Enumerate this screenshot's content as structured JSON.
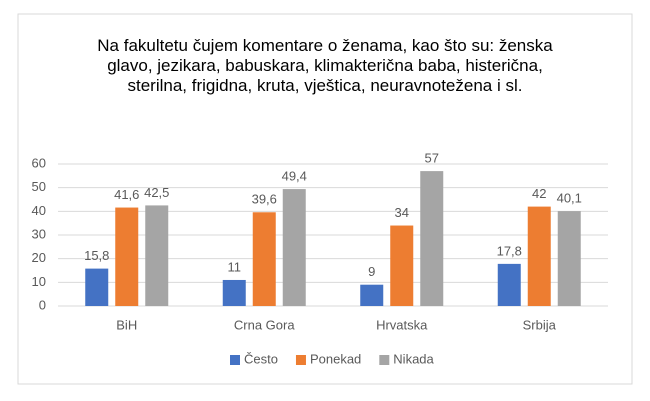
{
  "chart_data": {
    "type": "bar",
    "title": "Na fakultetu čujem komentare o ženama, kao što su: ženska glavo, jezikara, babuskara, klimakterična baba, histerična, sterilna, frigidna, kruta, vještica, neuravnotežena i sl.",
    "categories": [
      "BiH",
      "Crna Gora",
      "Hrvatska",
      "Srbija"
    ],
    "series": [
      {
        "name": "Često",
        "color": "#4472c4",
        "values": [
          15.8,
          11,
          9,
          17.8
        ],
        "value_labels": [
          "15,8",
          "11",
          "9",
          "17,8"
        ]
      },
      {
        "name": "Ponekad",
        "color": "#ed7d31",
        "values": [
          41.6,
          39.6,
          34,
          42
        ],
        "value_labels": [
          "41,6",
          "39,6",
          "34",
          "42"
        ]
      },
      {
        "name": "Nikada",
        "color": "#a5a5a5",
        "values": [
          42.5,
          49.4,
          57,
          40.1
        ],
        "value_labels": [
          "42,5",
          "49,4",
          "57",
          "40,1"
        ]
      }
    ],
    "ylim": [
      0,
      60
    ],
    "yticks": [
      0,
      10,
      20,
      30,
      40,
      50,
      60
    ],
    "grid": true,
    "legend": "bottom"
  }
}
